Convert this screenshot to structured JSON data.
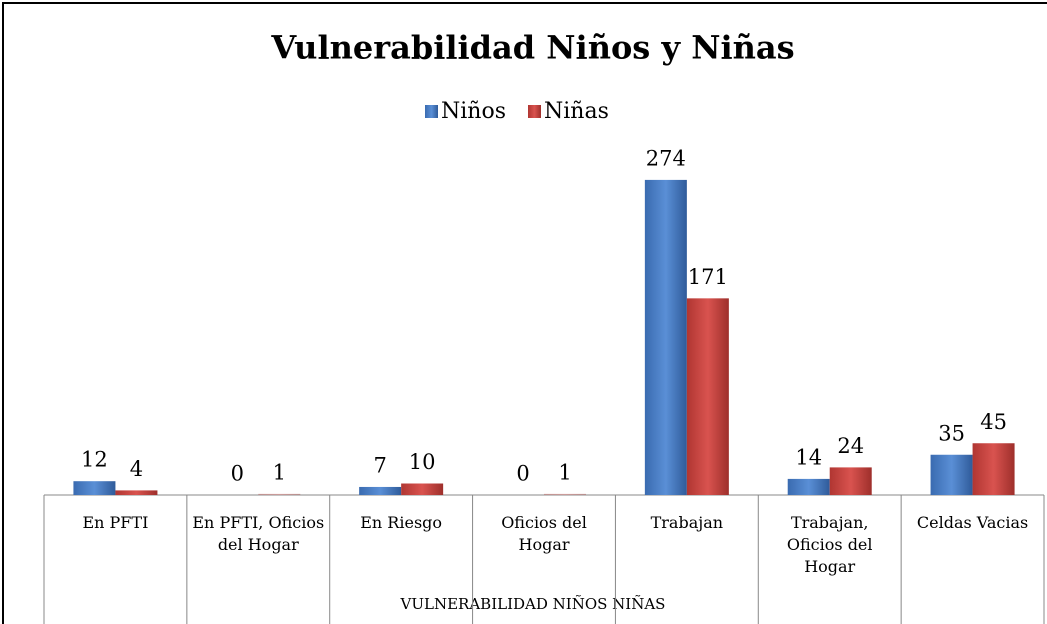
{
  "chart_data": {
    "type": "bar",
    "title": "Vulnerabilidad Niños y Niñas",
    "x_label": "VULNERABILIDAD NIÑOS NIÑAS",
    "categories": [
      "En PFTI",
      "En PFTI, Oficios del Hogar",
      "En Riesgo",
      "Oficios del Hogar",
      "Trabajan",
      "Trabajan, Oficios del Hogar",
      "Celdas Vacias"
    ],
    "series": [
      {
        "name": "Niños",
        "color": "#4f81bd",
        "values": [
          12,
          0,
          7,
          0,
          274,
          14,
          35
        ]
      },
      {
        "name": "Niñas",
        "color": "#c0504d",
        "values": [
          4,
          1,
          10,
          1,
          171,
          24,
          45
        ]
      }
    ],
    "ylim": [
      0,
      300
    ],
    "legend": "top"
  }
}
